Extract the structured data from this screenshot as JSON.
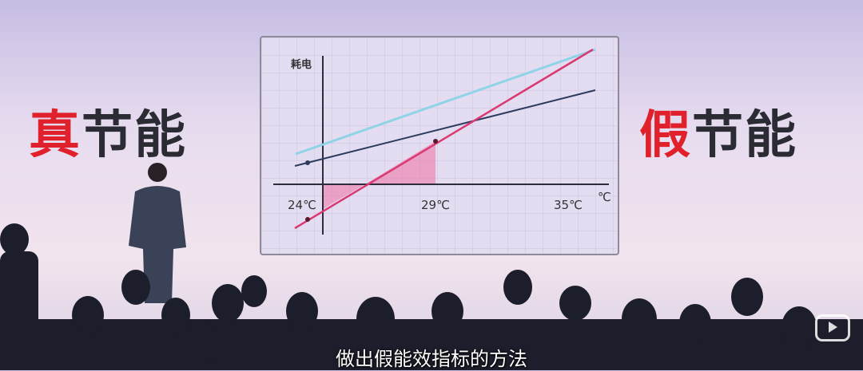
{
  "slide": {
    "left_slogan": {
      "highlight": "真",
      "rest": "节能"
    },
    "right_slogan": {
      "highlight": "假",
      "rest": "节能"
    },
    "chart": {
      "y_label": "耗电",
      "x_unit": "℃",
      "x_ticks": [
        "24℃",
        "29℃",
        "35℃"
      ]
    }
  },
  "subtitle": "做出假能效指标的方法",
  "colors": {
    "accent": "#e0202a",
    "light_line": "#8fd3e6",
    "navy_line": "#2c3b5e",
    "pink_line": "#d93a72",
    "fill": "#f07aa8"
  },
  "watermark": "bilibili-play-icon"
}
